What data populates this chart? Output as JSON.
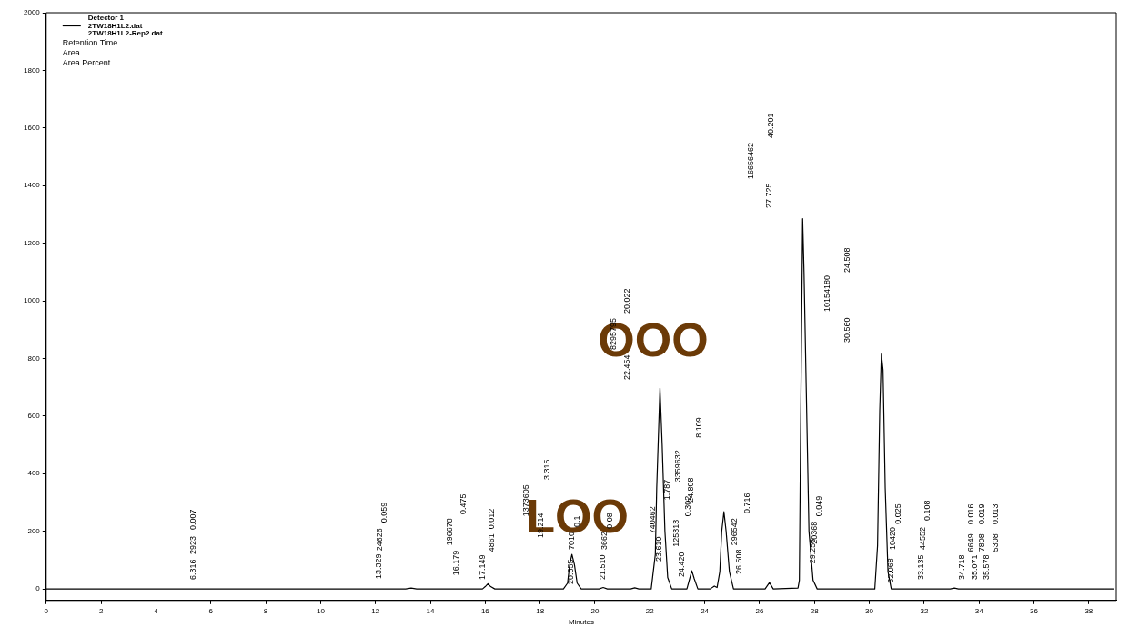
{
  "chart_data": {
    "type": "line",
    "xlabel": "Minutes",
    "legend_title": "Detector 1",
    "legend": "top left",
    "grid": false,
    "marker": "none",
    "line_style": "solid",
    "xlim": [
      0,
      39
    ],
    "ylim": [
      -40,
      2000
    ],
    "xticks": [
      0,
      2,
      4,
      6,
      8,
      10,
      12,
      14,
      16,
      18,
      20,
      22,
      24,
      26,
      28,
      30,
      32,
      34,
      36,
      38
    ],
    "yticks": [
      0,
      200,
      400,
      600,
      800,
      1000,
      1200,
      1400,
      1600,
      1800,
      2000
    ],
    "series": [
      {
        "name": "2TW18H1L2.dat",
        "color": "#000000",
        "x": [
          0,
          13.1,
          13.3,
          13.5,
          15.9,
          16.0,
          16.1,
          16.2,
          16.35,
          18.85,
          19.0,
          19.08,
          19.16,
          19.25,
          19.35,
          19.5,
          20.15,
          20.3,
          20.45,
          21.3,
          21.45,
          21.6,
          22.05,
          22.2,
          22.25,
          22.37,
          22.45,
          22.55,
          22.65,
          22.8,
          23.35,
          23.45,
          23.53,
          23.62,
          23.75,
          24.2,
          24.35,
          24.45,
          24.55,
          24.62,
          24.7,
          24.78,
          24.9,
          25.05,
          26.2,
          26.36,
          26.5,
          27.4,
          27.45,
          27.5,
          27.57,
          27.62,
          27.7,
          27.8,
          27.95,
          28.1,
          30.2,
          30.3,
          30.38,
          30.44,
          30.5,
          30.58,
          30.68,
          30.8,
          32.95,
          33.1,
          33.25,
          38.9
        ],
        "values": [
          0,
          0,
          3,
          0,
          0,
          8,
          18,
          8,
          0,
          0,
          20,
          85,
          120,
          85,
          20,
          0,
          0,
          5,
          0,
          0,
          4,
          0,
          0,
          120,
          350,
          697,
          500,
          200,
          40,
          0,
          0,
          35,
          63,
          35,
          0,
          0,
          10,
          5,
          60,
          200,
          268,
          200,
          60,
          0,
          0,
          22,
          0,
          3,
          30,
          600,
          1285,
          1100,
          700,
          200,
          30,
          0,
          0,
          150,
          620,
          815,
          760,
          350,
          60,
          0,
          0,
          3,
          0,
          0
        ]
      }
    ],
    "annotations": [
      "2TW18H1L2-Rep2.dat",
      "Retention Time",
      "Area",
      "Area Percent",
      "6.316",
      "2923",
      "0.007",
      "13.329",
      "24626",
      "0.059",
      "16.179",
      "196678",
      "0.475",
      "17.149",
      "4861",
      "0.012",
      "19.214",
      "1373605",
      "3.315",
      "20.355",
      "7010",
      "0.1",
      "21.510",
      "3662",
      "0.08",
      "22.454",
      "8295795",
      "20.022",
      "23.610",
      "740462",
      "1.787",
      "24.420",
      "125313",
      "0.302",
      "24.808",
      "3359632",
      "8.109",
      "26.508",
      "296542",
      "0.716",
      "27.725",
      "16656462",
      "40.201",
      "29.256",
      "20368",
      "0.049",
      "30.560",
      "10154180",
      "24.508",
      "32.068",
      "10420",
      "0.025",
      "33.135",
      "44552",
      "0.108",
      "34.718",
      "6649",
      "0.016",
      "35.071",
      "7808",
      "0.019",
      "35.578",
      "5308",
      "0.013",
      "OOO",
      "LOO"
    ]
  }
}
